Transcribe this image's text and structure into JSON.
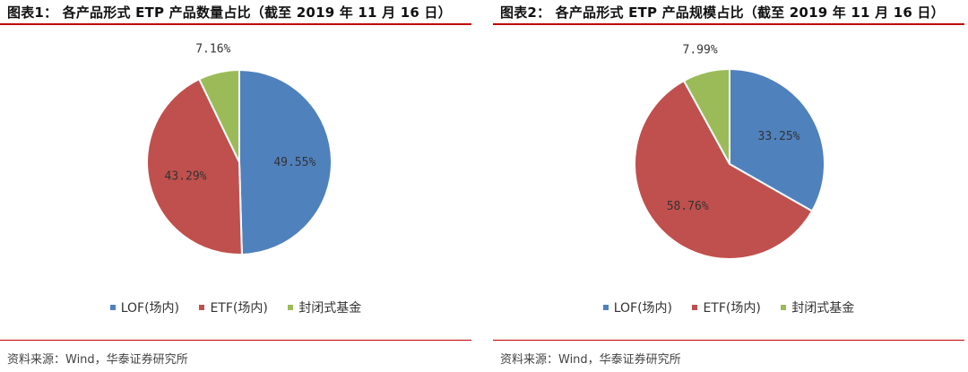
{
  "colors": {
    "blue": "#4f81bd",
    "red": "#c0504d",
    "green": "#9bbb59",
    "rule": "#c00000"
  },
  "chart_data": [
    {
      "type": "pie",
      "title": "图表1：  各产品形式 ETP 产品数量占比（截至 2019 年 11 月 16 日）",
      "categories": [
        "LOF(场内)",
        "ETF(场内)",
        "封闭式基金"
      ],
      "values": [
        49.55,
        43.29,
        7.16
      ],
      "labels": [
        "49.55%",
        "43.29%",
        "7.16%"
      ],
      "legend_position": "bottom",
      "source": "资料来源：Wind，华泰证券研究所"
    },
    {
      "type": "pie",
      "title": "图表2：  各产品形式 ETP 产品规模占比（截至 2019 年 11 月 16 日）",
      "categories": [
        "LOF(场内)",
        "ETF(场内)",
        "封闭式基金"
      ],
      "values": [
        33.25,
        58.76,
        7.99
      ],
      "labels": [
        "33.25%",
        "58.76%",
        "7.99%"
      ],
      "legend_position": "bottom",
      "source": "资料来源：Wind，华泰证券研究所"
    }
  ]
}
